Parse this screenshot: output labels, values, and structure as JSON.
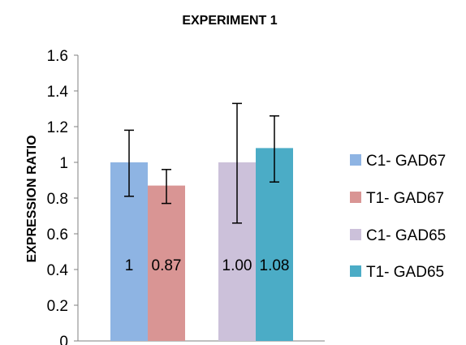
{
  "chart_data": {
    "type": "bar",
    "title": "EXPERIMENT 1",
    "ylabel": "EXPRESSION RATIO",
    "xlabel": "",
    "ylim": [
      0,
      1.6
    ],
    "yticks": [
      "0",
      "0.2",
      "0.4",
      "0.6",
      "0.8",
      "1",
      "1.2",
      "1.4",
      "1.6"
    ],
    "grid": false,
    "legend_position": "right",
    "bars": [
      {
        "name": "C1- GAD67",
        "value": 1.0,
        "error_low": 0.81,
        "error_high": 1.18,
        "label": "1",
        "color": "#8EB4E3",
        "group": 0
      },
      {
        "name": "T1- GAD67",
        "value": 0.87,
        "error_low": 0.77,
        "error_high": 0.96,
        "label": "0.87",
        "color": "#D99594",
        "group": 0
      },
      {
        "name": "C1- GAD65",
        "value": 1.0,
        "error_low": 0.66,
        "error_high": 1.33,
        "label": "1.00",
        "color": "#CCC1DA",
        "group": 1
      },
      {
        "name": "T1- GAD65",
        "value": 1.08,
        "error_low": 0.89,
        "error_high": 1.26,
        "label": "1.08",
        "color": "#4BACC6",
        "group": 1
      }
    ]
  }
}
